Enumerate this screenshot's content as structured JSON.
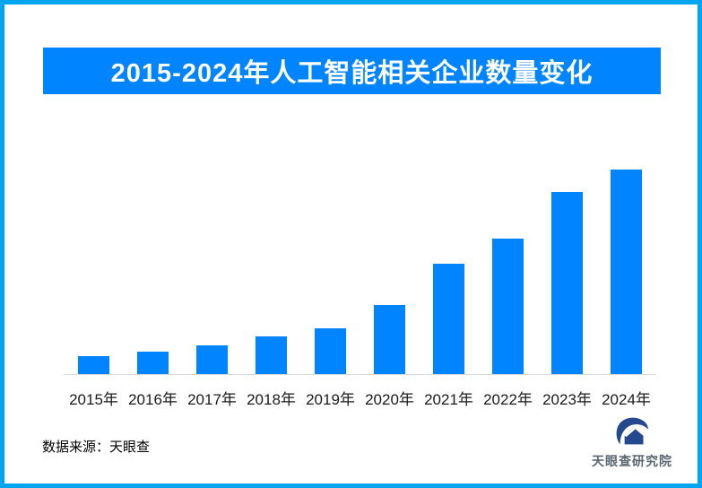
{
  "page": {
    "frame_border_color": "#00A4EF",
    "background_color": "#FFFFFF"
  },
  "header": {
    "title": "2015-2024年人工智能相关企业数量变化",
    "banner_color": "#0084FF",
    "title_color": "#FFFFFF"
  },
  "chart_data": {
    "type": "bar",
    "title": "2015-2024年人工智能相关企业数量变化",
    "categories": [
      "2015年",
      "2016年",
      "2017年",
      "2018年",
      "2019年",
      "2020年",
      "2021年",
      "2022年",
      "2023年",
      "2024年"
    ],
    "values": [
      8.7,
      10.9,
      14.0,
      18.3,
      22.3,
      33.6,
      54.1,
      66.4,
      89.1,
      100
    ],
    "xlabel": "",
    "ylabel": "",
    "ylim": [
      0,
      100
    ],
    "value_axis_visible": false,
    "value_labels_visible": false,
    "grid": false,
    "legend": false,
    "bar_color": "#0084FF",
    "axis_line_color": "#D9D9D9",
    "tick_label_color": "#1A1A1A"
  },
  "footer": {
    "source_label": "数据来源：天眼查",
    "logo": {
      "text": "天眼查研究院",
      "icon": "tianyancha-swoosh-house-icon",
      "icon_color": "#24498E",
      "text_color": "#5A6771"
    }
  }
}
